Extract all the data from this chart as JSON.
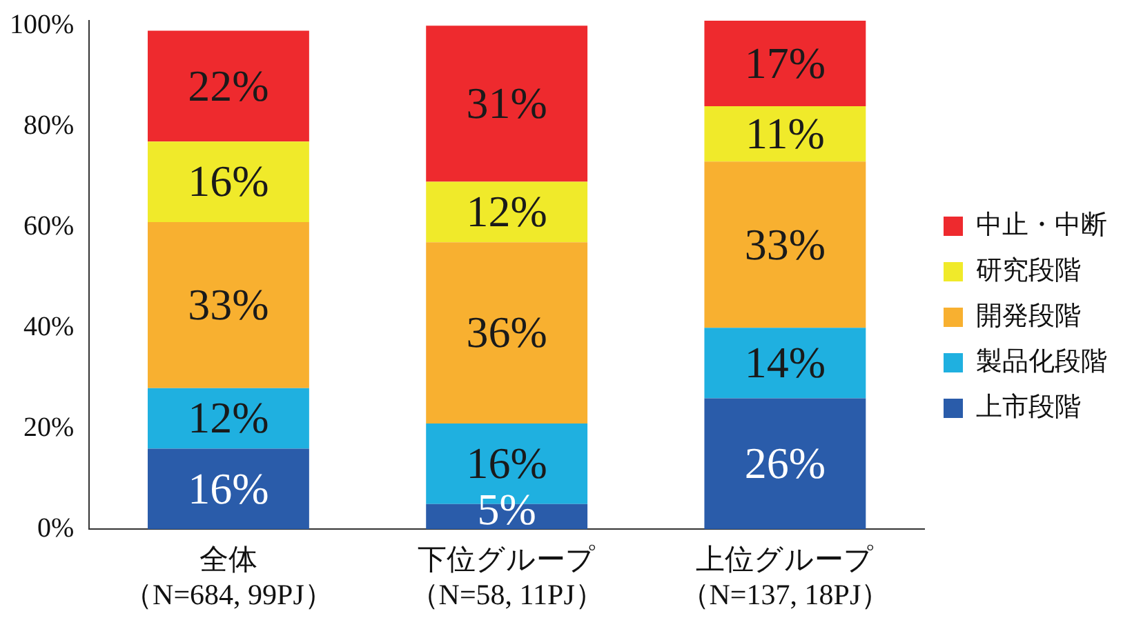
{
  "chart_data": {
    "type": "bar",
    "stacked": true,
    "categories": [
      "全体（N=684, 99PJ）",
      "下位グループ（N=58, 11PJ）",
      "上位グループ（N=137, 18PJ）"
    ],
    "series": [
      {
        "name": "上市段階",
        "color": "#2a5caa",
        "values": [
          16,
          5,
          26
        ],
        "value_labels": [
          "16%",
          "5%",
          "26%"
        ]
      },
      {
        "name": "製品化段階",
        "color": "#1fb0e0",
        "values": [
          12,
          16,
          14
        ],
        "value_labels": [
          "12%",
          "16%",
          "14%"
        ]
      },
      {
        "name": "開発段階",
        "color": "#f8b030",
        "values": [
          33,
          36,
          33
        ],
        "value_labels": [
          "33%",
          "36%",
          "33%"
        ]
      },
      {
        "name": "研究段階",
        "color": "#f0ea2a",
        "values": [
          16,
          12,
          11
        ],
        "value_labels": [
          "16%",
          "12%",
          "11%"
        ]
      },
      {
        "name": "中止・中断",
        "color": "#ee2a2e",
        "values": [
          22,
          31,
          17
        ],
        "value_labels": [
          "22%",
          "31%",
          "17%"
        ]
      }
    ],
    "ylim": [
      0,
      101
    ],
    "yticks": [
      {
        "value": 0,
        "label": "0%"
      },
      {
        "value": 20,
        "label": "20%"
      },
      {
        "value": 40,
        "label": "40%"
      },
      {
        "value": 60,
        "label": "60%"
      },
      {
        "value": 80,
        "label": "80%"
      },
      {
        "value": 100,
        "label": "100%"
      }
    ],
    "legend": "right",
    "grid": false
  }
}
